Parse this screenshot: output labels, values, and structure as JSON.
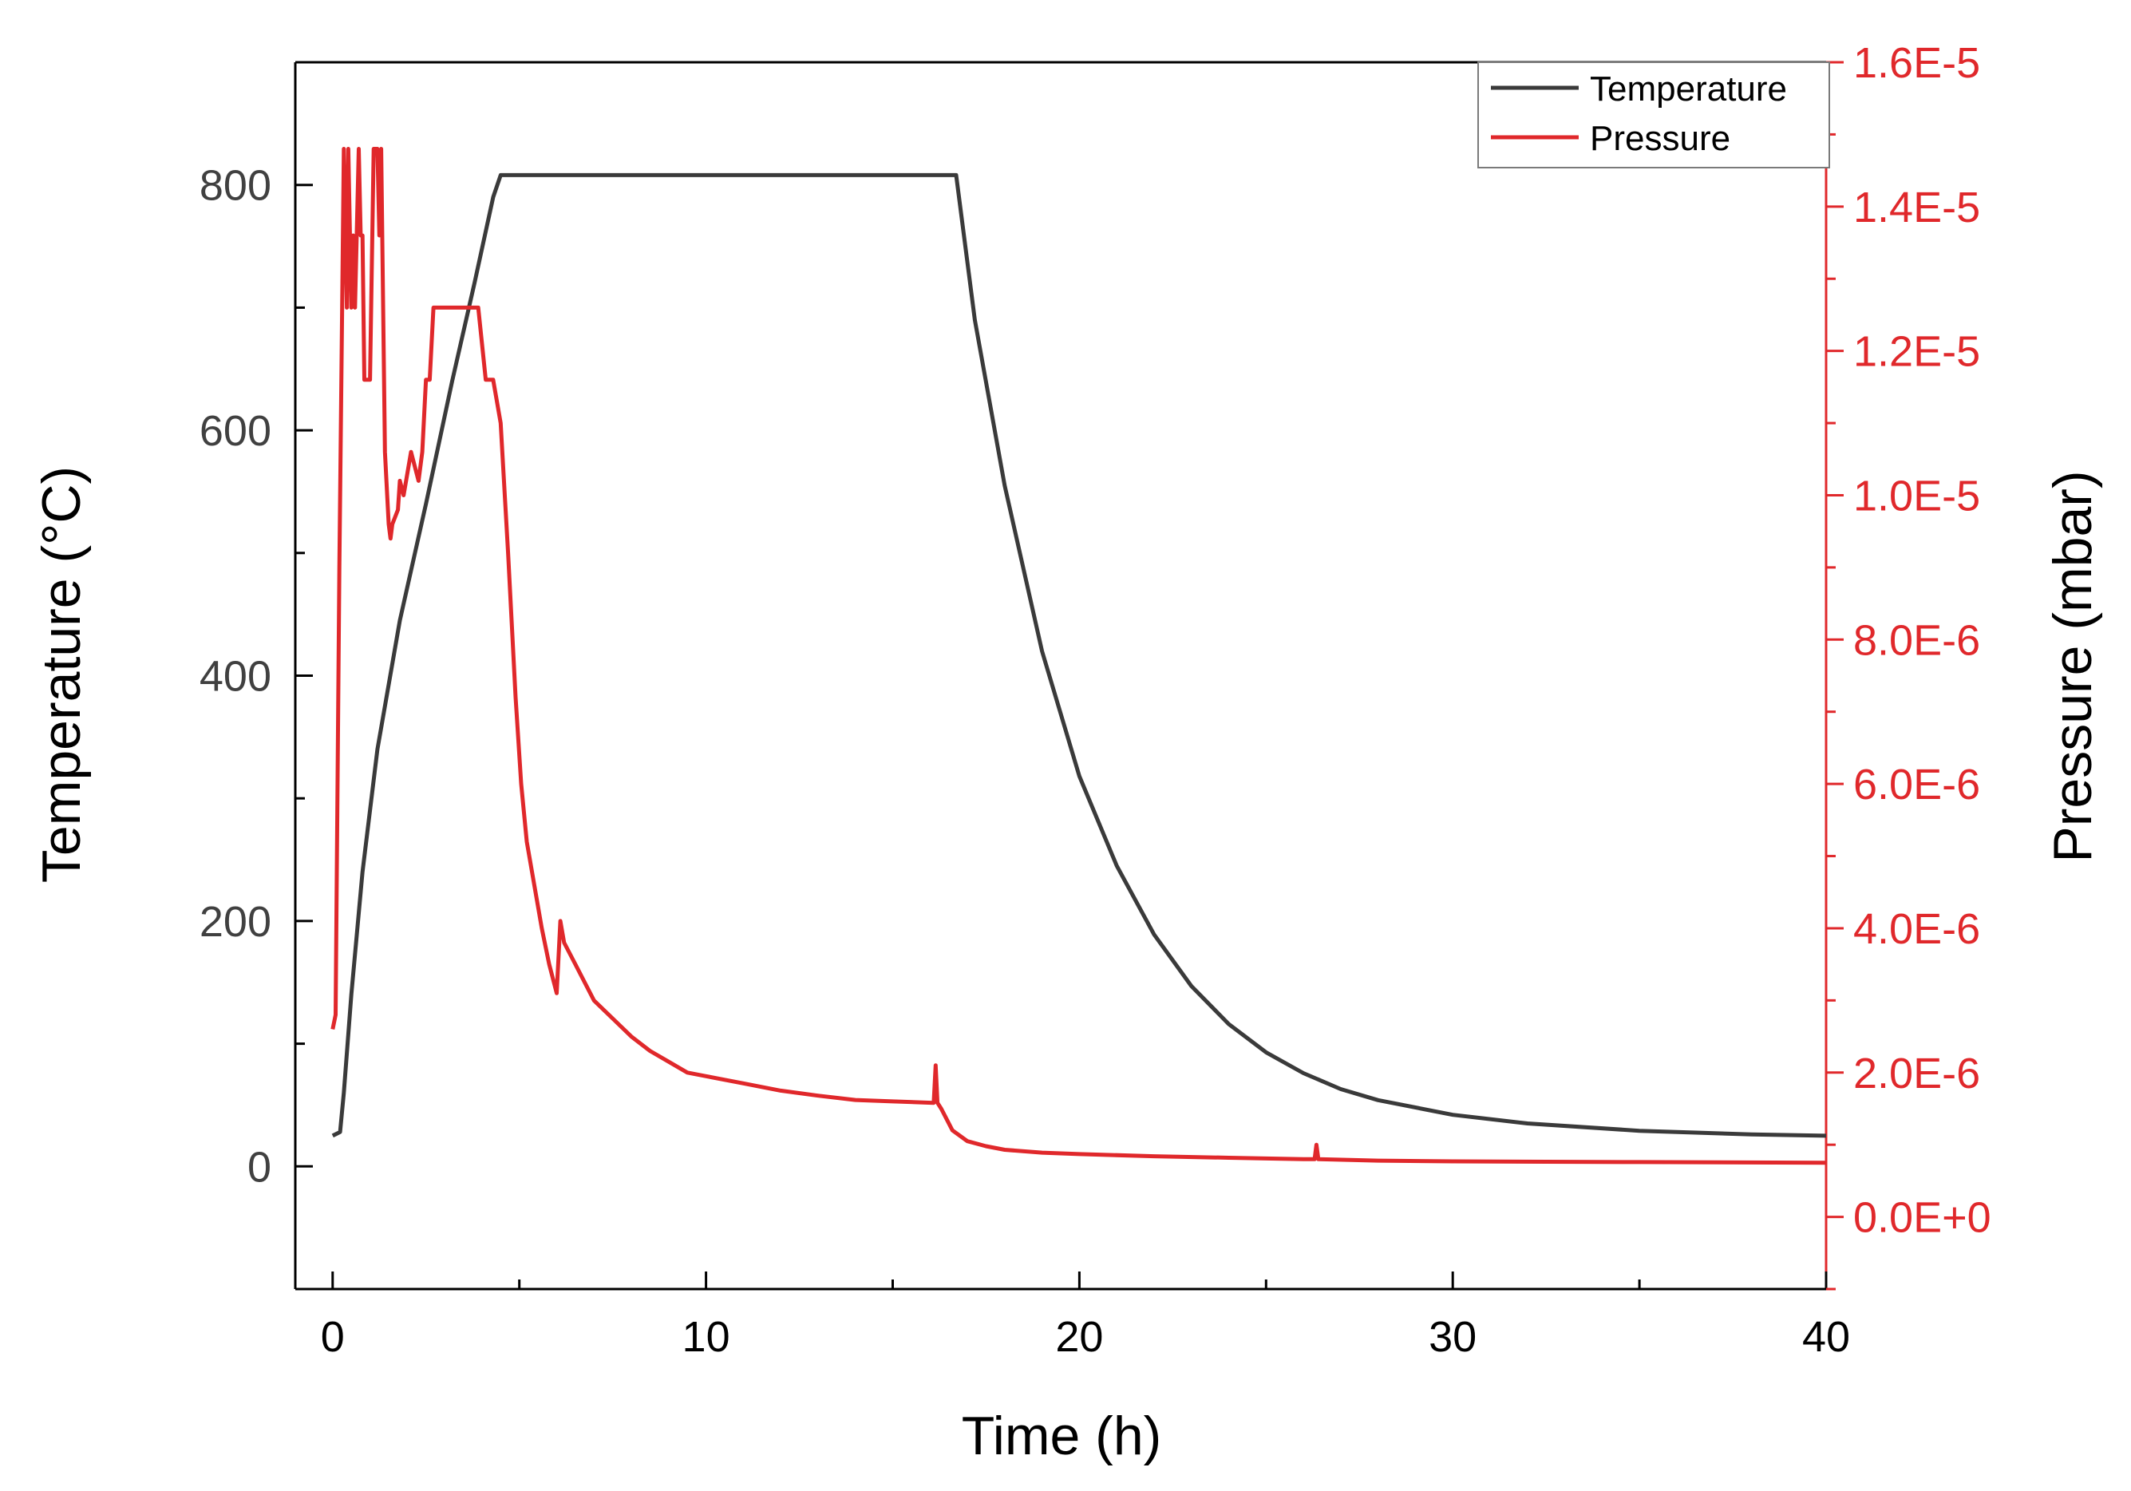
{
  "chart_data": {
    "type": "line",
    "title": "",
    "xlabel": "Time (h)",
    "ylabel_left": "Temperature (°C)",
    "ylabel_right": "Pressure (mbar)",
    "xlim": [
      -1,
      40
    ],
    "ylim_left": [
      -100,
      900
    ],
    "ylim_right": [
      -1e-06,
      1.6e-05
    ],
    "xticks": [
      0,
      10,
      20,
      30,
      40
    ],
    "xtick_labels": [
      "0",
      "10",
      "20",
      "30",
      "40"
    ],
    "yticks_left": [
      0,
      200,
      400,
      600,
      800
    ],
    "ytick_labels_left": [
      "0",
      "200",
      "400",
      "600",
      "800"
    ],
    "yticks_right": [
      0,
      2e-06,
      4e-06,
      6e-06,
      8e-06,
      1e-05,
      1.2e-05,
      1.4e-05,
      1.6e-05
    ],
    "ytick_labels_right": [
      "0.0E+0",
      "2.0E-6",
      "4.0E-6",
      "6.0E-6",
      "8.0E-6",
      "1.0E-5",
      "1.2E-5",
      "1.4E-5",
      "1.6E-5"
    ],
    "legend": {
      "position": "top-right",
      "entries": [
        "Temperature",
        "Pressure"
      ]
    },
    "grid": false,
    "colors": {
      "temperature": "#3a3a3a",
      "pressure": "#e0282b",
      "right_axis": "#e0282b"
    },
    "series": [
      {
        "name": "Temperature",
        "axis": "left",
        "x": [
          0,
          0.2,
          0.3,
          0.5,
          0.8,
          1.2,
          1.8,
          2.5,
          3.2,
          3.8,
          4.3,
          4.5,
          5.5,
          8,
          12,
          16,
          16.4,
          16.7,
          17.2,
          18,
          19,
          20,
          21,
          22,
          23,
          24,
          25,
          26,
          27,
          28,
          30,
          32,
          35,
          38,
          40
        ],
        "y": [
          25,
          28,
          60,
          140,
          240,
          340,
          445,
          540,
          640,
          720,
          790,
          808,
          808,
          808,
          808,
          808,
          808,
          808,
          690,
          555,
          420,
          318,
          245,
          189,
          147,
          116,
          93,
          76,
          63,
          54,
          42,
          35,
          29,
          26,
          25
        ]
      },
      {
        "name": "Pressure",
        "axis": "right",
        "x": [
          0,
          0.08,
          0.18,
          0.3,
          0.38,
          0.42,
          0.5,
          0.55,
          0.6,
          0.7,
          0.75,
          0.8,
          0.85,
          0.95,
          1.0,
          1.1,
          1.2,
          1.25,
          1.3,
          1.4,
          1.5,
          1.55,
          1.6,
          1.75,
          1.8,
          1.9,
          2.1,
          2.3,
          2.4,
          2.5,
          2.6,
          2.7,
          2.8,
          2.9,
          3.0,
          3.2,
          3.6,
          3.9,
          4.1,
          4.3,
          4.5,
          4.7,
          4.9,
          5.05,
          5.2,
          5.4,
          5.6,
          5.8,
          6.0,
          6.1,
          6.2,
          6.5,
          7.0,
          7.5,
          8.0,
          8.5,
          9,
          9.5,
          10,
          11,
          12,
          13,
          14,
          15,
          16.1,
          16.15,
          16.2,
          16.3,
          16.6,
          17,
          17.5,
          18,
          19,
          20,
          22,
          24,
          26,
          26.3,
          26.35,
          26.4,
          28,
          30,
          35,
          40
        ],
        "y": [
          2.6e-06,
          2.8e-06,
          9e-06,
          1.48e-05,
          1.26e-05,
          1.48e-05,
          1.26e-05,
          1.36e-05,
          1.26e-05,
          1.48e-05,
          1.36e-05,
          1.36e-05,
          1.16e-05,
          1.16e-05,
          1.16e-05,
          1.48e-05,
          1.48e-05,
          1.36e-05,
          1.48e-05,
          1.06e-05,
          9.6e-06,
          9.4e-06,
          9.6e-06,
          9.8e-06,
          1.02e-05,
          1e-05,
          1.06e-05,
          1.02e-05,
          1.06e-05,
          1.16e-05,
          1.16e-05,
          1.26e-05,
          1.26e-05,
          1.26e-05,
          1.26e-05,
          1.26e-05,
          1.26e-05,
          1.26e-05,
          1.16e-05,
          1.16e-05,
          1.1e-05,
          9.2e-06,
          7.2e-06,
          6e-06,
          5.2e-06,
          4.6e-06,
          4e-06,
          3.5e-06,
          3.1e-06,
          4.1e-06,
          3.8e-06,
          3.5e-06,
          3e-06,
          2.75e-06,
          2.5e-06,
          2.3e-06,
          2.15e-06,
          2e-06,
          1.95e-06,
          1.85e-06,
          1.75e-06,
          1.68e-06,
          1.62e-06,
          1.6e-06,
          1.58e-06,
          2.1e-06,
          1.58e-06,
          1.5e-06,
          1.2e-06,
          1.05e-06,
          9.8e-07,
          9.3e-07,
          8.9e-07,
          8.7e-07,
          8.4e-07,
          8.2e-07,
          8e-07,
          8e-07,
          1e-06,
          8e-07,
          7.8e-07,
          7.7e-07,
          7.6e-07,
          7.5e-07
        ]
      }
    ]
  }
}
